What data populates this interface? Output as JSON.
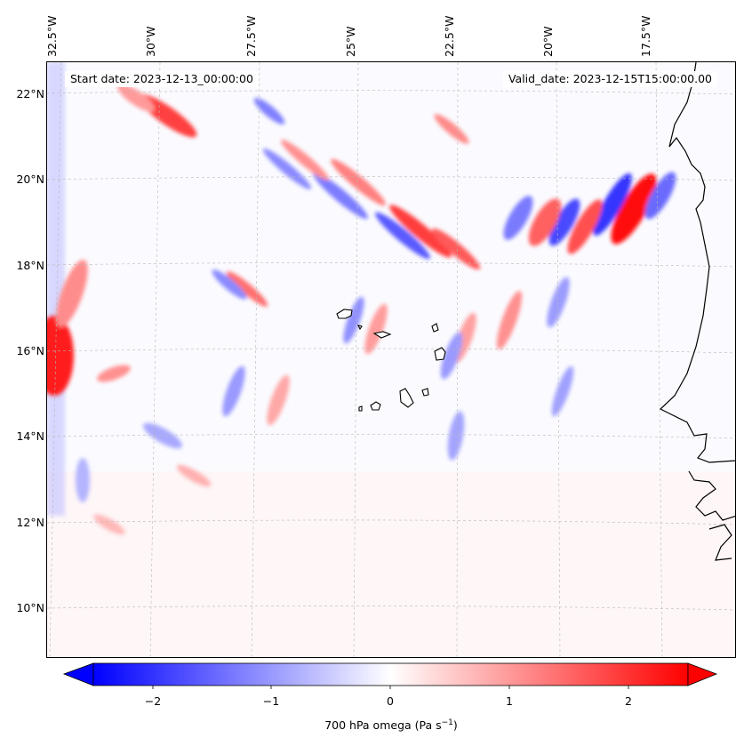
{
  "map": {
    "start_date": "Start date: 2023-12-13_00:00:00",
    "valid_date": "Valid_date: 2023-12-15T15:00:00.00",
    "lon_labels": [
      "32.5°W",
      "30°W",
      "27.5°W",
      "25°W",
      "22.5°W",
      "20°W",
      "17.5°W"
    ],
    "lat_labels": [
      "22°N",
      "20°N",
      "18°N",
      "16°N",
      "14°N",
      "12°N",
      "10°N"
    ],
    "colors": {
      "positive": "#ff0000",
      "negative": "#0000ff",
      "neutral": "#ffffff",
      "coast": "#000000"
    }
  },
  "colorbar": {
    "ticks": [
      "−2",
      "−1",
      "0",
      "1",
      "2"
    ],
    "label_main": "700 hPa omega (Pa s",
    "label_sup": "−1",
    "label_end": ")",
    "min": -2.75,
    "max": 2.75
  }
}
